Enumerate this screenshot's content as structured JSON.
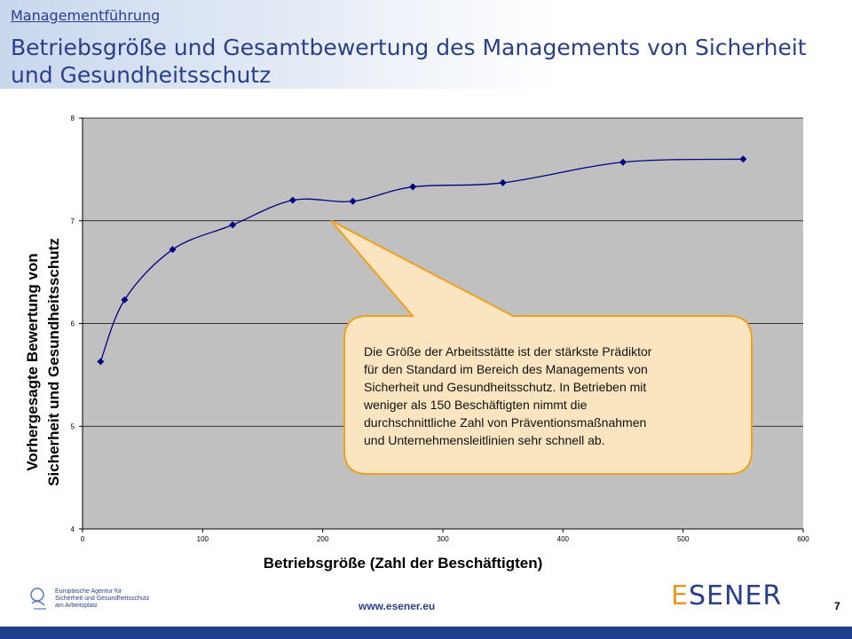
{
  "header": {
    "section_link": "Managementführung",
    "title": "Betriebsgröße und Gesamtbewertung des Managements von Sicherheit und Gesundheitsschutz"
  },
  "chart_data": {
    "type": "line",
    "title": "",
    "xlabel": "Betriebsgröße (Zahl der Beschäftigten)",
    "ylabel_lines": [
      "Vorhergesagte Bewertung von",
      "Sicherheit und Gesundheitsschutz"
    ],
    "xlim": [
      0,
      600
    ],
    "ylim": [
      4,
      8
    ],
    "x_ticks": [
      0,
      100,
      200,
      300,
      400,
      500,
      600
    ],
    "y_ticks": [
      4,
      5,
      6,
      7,
      8
    ],
    "grid": "horizontal",
    "plot_background": "#c0c0c0",
    "series": [
      {
        "color": "#000080",
        "marker": "diamond",
        "smooth": true,
        "x": [
          15,
          35,
          75,
          125,
          175,
          225,
          275,
          350,
          450,
          550
        ],
        "y": [
          5.63,
          6.23,
          6.72,
          6.96,
          7.2,
          7.19,
          7.33,
          7.37,
          7.57,
          7.6
        ]
      }
    ],
    "annotation": {
      "text": "Die Größe der Arbeitsstätte ist der stärkste Prädiktor\nfür den Standard im Bereich des Managements  von\nSicherheit und Gesundheitsschutz.  In Betrieben  mit\nweniger  als 150 Beschäftigten nimmt die\ndurchschnittliche Zahl von Präventionsmaßnahmen\nund Unternehmensleitlinien  sehr schnell ab.",
      "pointer_x": 207,
      "pointer_y": 7.0,
      "fill": "#fbe5c0",
      "stroke": "#f0a020"
    }
  },
  "footer": {
    "agency_logo_text": "Europäische Agentur für\nSicherheit und Gesundheitsschutz\nam Arbeitsplatz",
    "url": "www.esener.eu",
    "page_number": "7",
    "brand_logo_e": "E",
    "brand_logo_rest": "SENER"
  },
  "colors": {
    "accent": "#2a3f8a",
    "callout_fill": "#fbe5c0",
    "callout_border": "#f0a020",
    "bottom_bar": "#1f3f8f"
  }
}
